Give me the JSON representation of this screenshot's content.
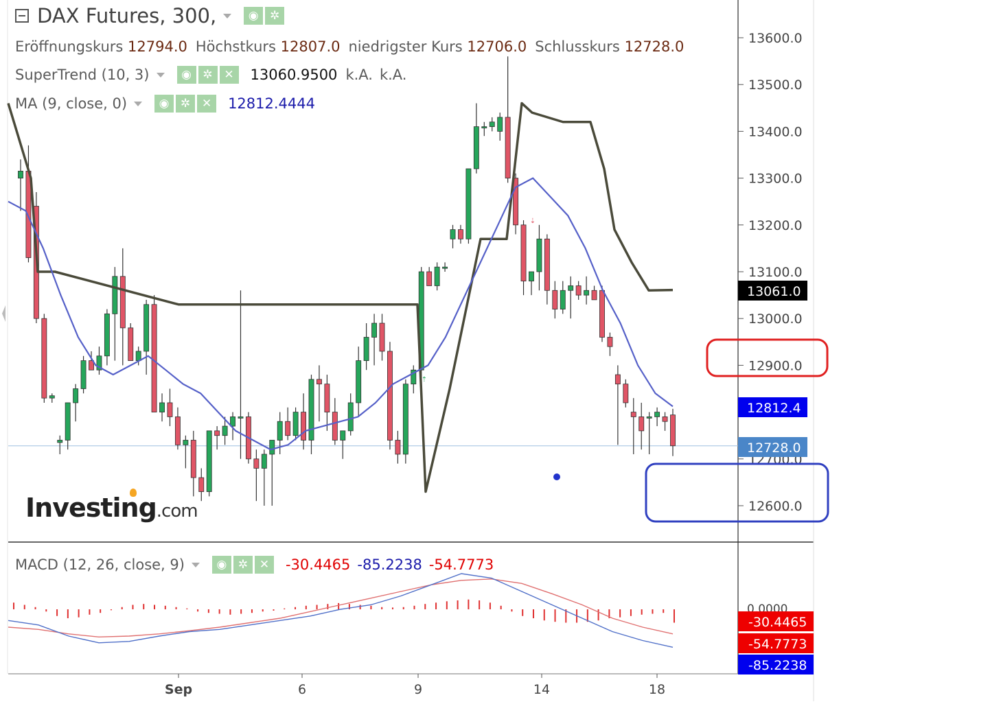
{
  "legend": {
    "instrument": "DAX Futures, 300,",
    "ohlc": [
      {
        "label": "Eröffnungskurs",
        "value": "12794.0"
      },
      {
        "label": "Höchstkurs",
        "value": "12807.0"
      },
      {
        "label": "niedrigster Kurs",
        "value": "12706.0"
      },
      {
        "label": "Schlusskurs",
        "value": "12728.0"
      }
    ],
    "supertrend": {
      "label": "SuperTrend (10, 3)",
      "value": "13060.9500",
      "v2": "k.A.",
      "v3": "k.A."
    },
    "ma": {
      "label": "MA (9, close, 0)",
      "value": "12812.4444"
    },
    "macd": {
      "label": "MACD (12, 26, close, 9)",
      "hist": "-30.4465",
      "macd": "-85.2238",
      "signal": "-54.7773"
    }
  },
  "logo": {
    "main": "Investing",
    "suffix": ".com"
  },
  "price_tags": {
    "supertrend": "13061.0",
    "ma": "12812.4",
    "last": "12728.0",
    "macd_hist": "-30.4465",
    "macd_signal": "-54.7773",
    "macd_line": "-85.2238"
  },
  "colors": {
    "up": "#26a65b",
    "down": "#e05566",
    "supertrend": "#4a4a3a",
    "ma": "#5560c8",
    "macd_line": "#4f6fc8",
    "signal_line": "#e07070",
    "hist": "#e03030",
    "tag_black": "#000000",
    "tag_blue": "#0000ee",
    "tag_last": "#4a86c8",
    "tag_red": "#ee0000",
    "annotation_red": "#e02020",
    "annotation_blue": "#3040c0"
  },
  "chart_data": [
    {
      "type": "candlestick",
      "title": "DAX Futures, 300,",
      "ylim": [
        12540,
        13680
      ],
      "y_ticks": [
        "13600.0",
        "13500.0",
        "13400.0",
        "13300.0",
        "13200.0",
        "13100.0",
        "13000.0",
        "12900.0",
        "12700.0",
        "12600.0"
      ],
      "x_ticks": [
        "Sep",
        "6",
        "9",
        "14",
        "18"
      ],
      "candles": [
        [
          13300,
          13340,
          13230,
          13315
        ],
        [
          13315,
          13370,
          13120,
          13130
        ],
        [
          13240,
          13270,
          12990,
          13000
        ],
        [
          13000,
          13010,
          12820,
          12830
        ],
        [
          12830,
          12840,
          12820,
          12835
        ],
        [
          12735,
          12750,
          12710,
          12740
        ],
        [
          12740,
          12820,
          12720,
          12820
        ],
        [
          12820,
          12860,
          12780,
          12850
        ],
        [
          12850,
          12920,
          12840,
          12910
        ],
        [
          12910,
          12930,
          12890,
          12890
        ],
        [
          12890,
          12940,
          12880,
          12920
        ],
        [
          12920,
          13020,
          12900,
          13010
        ],
        [
          13010,
          13110,
          12910,
          13090
        ],
        [
          13090,
          13150,
          12900,
          12980
        ],
        [
          12980,
          12990,
          12910,
          12910
        ],
        [
          12910,
          12940,
          12900,
          12930
        ],
        [
          12930,
          13040,
          12880,
          13030
        ],
        [
          13030,
          13050,
          12800,
          12800
        ],
        [
          12800,
          12840,
          12780,
          12820
        ],
        [
          12820,
          12850,
          12770,
          12790
        ],
        [
          12790,
          12810,
          12720,
          12730
        ],
        [
          12730,
          12750,
          12680,
          12740
        ],
        [
          12740,
          12760,
          12620,
          12660
        ],
        [
          12660,
          12680,
          12610,
          12630
        ],
        [
          12630,
          12760,
          12620,
          12760
        ],
        [
          12760,
          12770,
          12720,
          12750
        ],
        [
          12750,
          12790,
          12730,
          12770
        ],
        [
          12770,
          12800,
          12740,
          12790
        ],
        [
          12790,
          13060,
          12700,
          12790
        ],
        [
          12790,
          12800,
          12690,
          12700
        ],
        [
          12700,
          12720,
          12610,
          12680
        ],
        [
          12680,
          12720,
          12600,
          12710
        ],
        [
          12710,
          12740,
          12600,
          12740
        ],
        [
          12740,
          12800,
          12710,
          12780
        ],
        [
          12780,
          12810,
          12740,
          12750
        ],
        [
          12750,
          12810,
          12740,
          12800
        ],
        [
          12800,
          12840,
          12720,
          12740
        ],
        [
          12740,
          12880,
          12710,
          12870
        ],
        [
          12870,
          12900,
          12780,
          12860
        ],
        [
          12860,
          12880,
          12760,
          12800
        ],
        [
          12800,
          12830,
          12730,
          12740
        ],
        [
          12740,
          12760,
          12700,
          12760
        ],
        [
          12760,
          12840,
          12750,
          12820
        ],
        [
          12820,
          12940,
          12790,
          12910
        ],
        [
          12910,
          12990,
          12890,
          12960
        ],
        [
          12960,
          13010,
          12900,
          12990
        ],
        [
          12990,
          13010,
          12910,
          12930
        ],
        [
          12930,
          12950,
          12720,
          12740
        ],
        [
          12740,
          12760,
          12690,
          12710
        ],
        [
          12710,
          12870,
          12690,
          12860
        ],
        [
          12860,
          12900,
          12840,
          12890
        ],
        [
          12890,
          13110,
          12860,
          13100
        ],
        [
          13100,
          13110,
          13070,
          13070
        ],
        [
          13070,
          13120,
          13060,
          13110
        ],
        [
          13110,
          13120,
          13100,
          13110
        ],
        [
          13170,
          13200,
          13150,
          13190
        ],
        [
          13190,
          13200,
          13160,
          13170
        ],
        [
          13170,
          13320,
          13160,
          13320
        ],
        [
          13320,
          13460,
          13310,
          13410
        ],
        [
          13410,
          13420,
          13390,
          13410
        ],
        [
          13410,
          13430,
          13400,
          13420
        ],
        [
          13400,
          13440,
          13380,
          13430
        ],
        [
          13430,
          13560,
          13290,
          13300
        ],
        [
          13300,
          13310,
          13180,
          13200
        ],
        [
          13200,
          13210,
          13050,
          13080
        ],
        [
          13080,
          13100,
          13050,
          13100
        ],
        [
          13100,
          13200,
          13060,
          13170
        ],
        [
          13170,
          13180,
          13030,
          13060
        ],
        [
          13060,
          13080,
          13000,
          13020
        ],
        [
          13020,
          13080,
          13010,
          13060
        ],
        [
          13060,
          13090,
          13000,
          13070
        ],
        [
          13070,
          13080,
          13040,
          13050
        ],
        [
          13050,
          13090,
          13030,
          13060
        ],
        [
          13060,
          13070,
          13040,
          13040
        ],
        [
          13060,
          13070,
          12950,
          12960
        ],
        [
          12960,
          12970,
          12920,
          12940
        ],
        [
          12880,
          12900,
          12730,
          12860
        ],
        [
          12860,
          12870,
          12810,
          12820
        ],
        [
          12800,
          12830,
          12710,
          12790
        ],
        [
          12790,
          12820,
          12720,
          12760
        ],
        [
          12790,
          12800,
          12710,
          12790
        ],
        [
          12790,
          12810,
          12770,
          12800
        ],
        [
          12790,
          12800,
          12760,
          12780
        ],
        [
          12794,
          12807,
          12706,
          12728
        ]
      ]
    },
    {
      "type": "line",
      "title": "SuperTrend (10, 3)",
      "series": [
        {
          "x": [
            0,
            1,
            2,
            3,
            4,
            5,
            6,
            7,
            8,
            9,
            10,
            11,
            12,
            13,
            14,
            15,
            16,
            17,
            18,
            19
          ],
          "values": [
            13460,
            13300,
            13100,
            13100,
            13030,
            13030,
            13030,
            12630,
            12850,
            13170,
            13170,
            13460,
            13440,
            13420,
            13420,
            13320,
            13190,
            13120,
            13060,
            13061
          ]
        }
      ]
    },
    {
      "type": "line",
      "title": "MA (9, close, 0)",
      "series": [
        {
          "values": [
            13250,
            13230,
            13150,
            13050,
            12960,
            12900,
            12880,
            12900,
            12920,
            12890,
            12860,
            12840,
            12800,
            12760,
            12740,
            12720,
            12730,
            12760,
            12770,
            12780,
            12790,
            12820,
            12860,
            12880,
            12900,
            12960,
            13040,
            13120,
            13200,
            13280,
            13300,
            13260,
            13220,
            13150,
            13060,
            12990,
            12900,
            12840,
            12812
          ]
        }
      ]
    },
    {
      "type": "area",
      "title": "MACD (12, 26, close, 9)",
      "series": [
        {
          "name": "MACD",
          "values": [
            -25,
            -35,
            -60,
            -75,
            -72,
            -60,
            -50,
            -45,
            -35,
            -25,
            -15,
            0,
            10,
            30,
            55,
            80,
            70,
            40,
            10,
            -20,
            -50,
            -70,
            -85
          ]
        },
        {
          "name": "Signal",
          "values": [
            -40,
            -45,
            -55,
            -62,
            -60,
            -55,
            -48,
            -40,
            -30,
            -20,
            -5,
            10,
            25,
            40,
            55,
            65,
            68,
            58,
            35,
            10,
            -20,
            -40,
            -55
          ]
        }
      ],
      "histogram": [
        15,
        10,
        5,
        -5,
        -15,
        -20,
        -18,
        -12,
        -8,
        -2,
        5,
        10,
        12,
        10,
        8,
        5,
        2,
        -5,
        -8,
        -10,
        -12,
        -10,
        -8,
        -5,
        -3,
        2,
        5,
        8,
        10,
        12,
        14,
        12,
        10,
        8,
        5,
        4,
        5,
        8,
        12,
        15,
        18,
        20,
        22,
        20,
        15,
        8,
        -5,
        -15,
        -20,
        -25,
        -28,
        -30,
        -30,
        -28,
        -25,
        -20,
        -18,
        -15,
        -12,
        -10,
        -8,
        -30
      ]
    }
  ]
}
